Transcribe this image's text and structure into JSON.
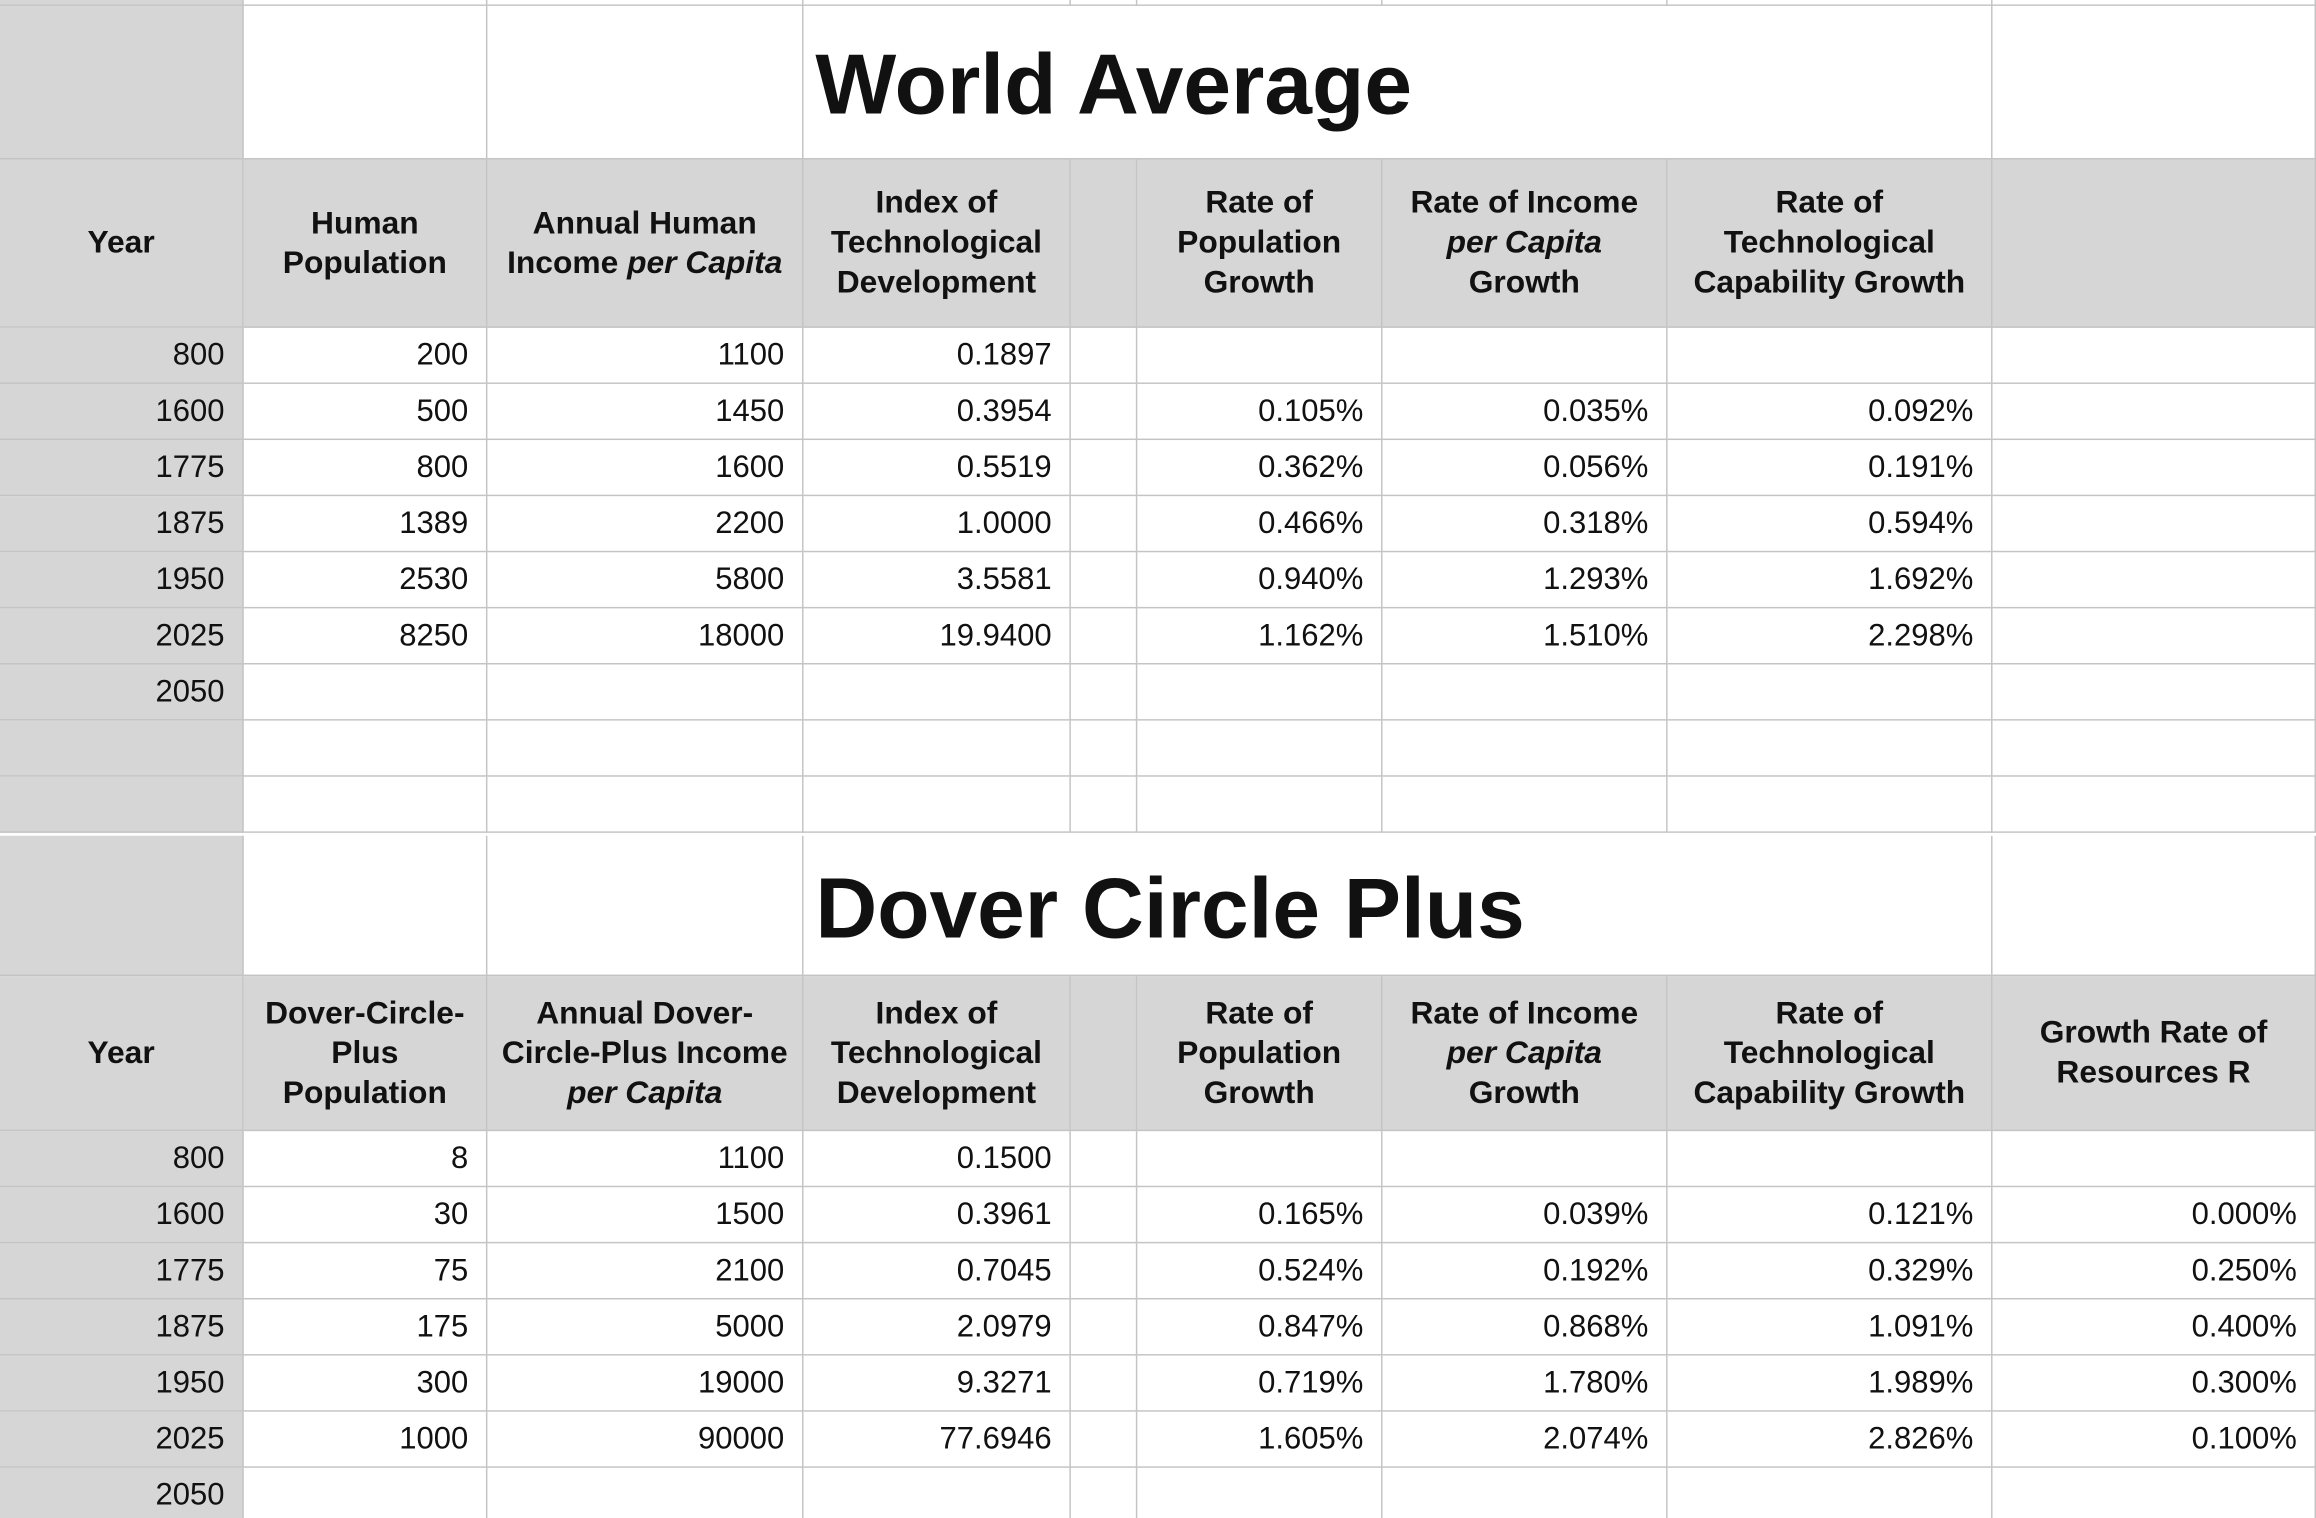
{
  "tables": [
    {
      "title": "World Average",
      "headers": [
        [
          "Year"
        ],
        [
          "Human Population"
        ],
        [
          "Annual Human Income ",
          "per Capita"
        ],
        [
          "Index of Technological Development"
        ],
        [
          "Rate of Population Growth"
        ],
        [
          "Rate of Income ",
          "per Capita",
          " Growth"
        ],
        [
          "Rate of Technological Capability Growth"
        ],
        null
      ],
      "rows": [
        [
          "800",
          "200",
          "1100",
          "0.1897",
          null,
          null,
          null,
          null
        ],
        [
          "1600",
          "500",
          "1450",
          "0.3954",
          "0.105%",
          "0.035%",
          "0.092%",
          null
        ],
        [
          "1775",
          "800",
          "1600",
          "0.5519",
          "0.362%",
          "0.056%",
          "0.191%",
          null
        ],
        [
          "1875",
          "1389",
          "2200",
          "1.0000",
          "0.466%",
          "0.318%",
          "0.594%",
          null
        ],
        [
          "1950",
          "2530",
          "5800",
          "3.5581",
          "0.940%",
          "1.293%",
          "1.692%",
          null
        ],
        [
          "2025",
          "8250",
          "18000",
          "19.9400",
          "1.162%",
          "1.510%",
          "2.298%",
          null
        ],
        [
          "2050",
          null,
          null,
          null,
          null,
          null,
          null,
          null
        ]
      ]
    },
    {
      "title": "Dover Circle Plus",
      "headers": [
        [
          "Year"
        ],
        [
          "Dover-Circle-Plus Population"
        ],
        [
          "Annual Dover-Circle-Plus Income ",
          "per Capita"
        ],
        [
          "Index of Technological Development"
        ],
        [
          "Rate of Population Growth"
        ],
        [
          "Rate of Income ",
          "per Capita",
          " Growth"
        ],
        [
          "Rate of Technological Capability Growth"
        ],
        [
          "Growth Rate of Resources R"
        ]
      ],
      "rows": [
        [
          "800",
          "8",
          "1100",
          "0.1500",
          null,
          null,
          null,
          null
        ],
        [
          "1600",
          "30",
          "1500",
          "0.3961",
          "0.165%",
          "0.039%",
          "0.121%",
          "0.000%"
        ],
        [
          "1775",
          "75",
          "2100",
          "0.7045",
          "0.524%",
          "0.192%",
          "0.329%",
          "0.250%"
        ],
        [
          "1875",
          "175",
          "5000",
          "2.0979",
          "0.847%",
          "0.868%",
          "1.091%",
          "0.400%"
        ],
        [
          "1950",
          "300",
          "19000",
          "9.3271",
          "0.719%",
          "1.780%",
          "1.989%",
          "0.300%"
        ],
        [
          "2025",
          "1000",
          "90000",
          "77.6946",
          "1.605%",
          "2.074%",
          "2.826%",
          "0.100%"
        ],
        [
          "2050",
          null,
          null,
          null,
          null,
          null,
          null,
          null
        ]
      ]
    }
  ]
}
